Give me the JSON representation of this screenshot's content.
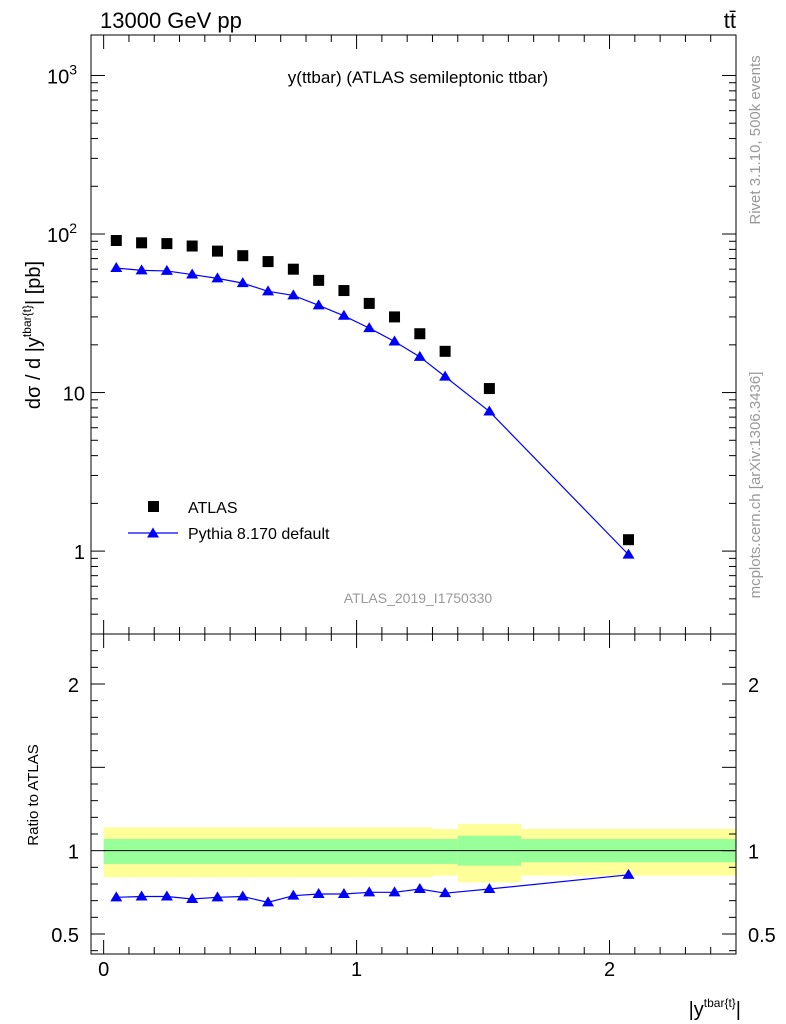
{
  "header": {
    "left": "13000 GeV pp",
    "right": "tt̄"
  },
  "side_labels": {
    "rivet": "Rivet 3.1.10,  500k events",
    "mcplots": "mcplots.cern.ch [arXiv:1306.3436]"
  },
  "chart_data": [
    {
      "type": "scatter",
      "title": "y(ttbar) (ATLAS semileptonic ttbar)",
      "ylabel": "dσ / d |y^{tbar{t}}| [pb]",
      "xlabel": "",
      "yscale": "log",
      "ylim": [
        0.3,
        1800
      ],
      "xlim": [
        -0.05,
        2.5
      ],
      "yticks": [
        {
          "value": 1,
          "label": "1"
        },
        {
          "value": 10,
          "label": "10"
        },
        {
          "value": 100,
          "label": "10^2"
        },
        {
          "value": 1000,
          "label": "10^3"
        }
      ],
      "legend_position": "bottom-left",
      "watermark": "ATLAS_2019_I1750330",
      "x": [
        0.05,
        0.15,
        0.25,
        0.35,
        0.45,
        0.55,
        0.65,
        0.75,
        0.85,
        0.95,
        1.05,
        1.15,
        1.25,
        1.35,
        1.525,
        2.075
      ],
      "series": [
        {
          "name": "ATLAS",
          "marker": "square",
          "color": "#000000",
          "values": [
            91,
            88,
            87,
            84,
            78,
            73,
            67,
            60,
            51,
            44,
            36.5,
            30,
            23.5,
            18.2,
            10.6,
            1.18
          ]
        },
        {
          "name": "Pythia 8.170 default",
          "marker": "triangle",
          "color": "#0000ff",
          "values": [
            61,
            59,
            58.5,
            55.5,
            52.5,
            49,
            43.5,
            41,
            35.5,
            30.5,
            25.5,
            21,
            16.8,
            12.6,
            7.6,
            0.95
          ]
        }
      ]
    },
    {
      "type": "line",
      "ylabel": "Ratio to ATLAS",
      "xlabel": "|y^{tbar{t}}|",
      "ylim": [
        0.38,
        2.3
      ],
      "xlim": [
        -0.05,
        2.5
      ],
      "yticks": [
        {
          "value": 0.5,
          "label": "0.5"
        },
        {
          "value": 1,
          "label": "1"
        },
        {
          "value": 2,
          "label": "2"
        }
      ],
      "xticks": [
        {
          "value": 0,
          "label": "0"
        },
        {
          "value": 1,
          "label": "1"
        },
        {
          "value": 2,
          "label": "2"
        }
      ],
      "bands": [
        {
          "x_from": 0.0,
          "x_to": 1.3,
          "yellow": [
            0.84,
            1.14
          ],
          "green": [
            0.92,
            1.07
          ]
        },
        {
          "x_from": 1.3,
          "x_to": 1.4,
          "yellow": [
            0.85,
            1.13
          ],
          "green": [
            0.92,
            1.07
          ]
        },
        {
          "x_from": 1.4,
          "x_to": 1.65,
          "yellow": [
            0.81,
            1.16
          ],
          "green": [
            0.91,
            1.09
          ]
        },
        {
          "x_from": 1.65,
          "x_to": 2.5,
          "yellow": [
            0.85,
            1.13
          ],
          "green": [
            0.93,
            1.07
          ]
        }
      ],
      "series": [
        {
          "name": "Pythia 8.170 default",
          "color": "#0000ff",
          "x": [
            0.05,
            0.15,
            0.25,
            0.35,
            0.45,
            0.55,
            0.65,
            0.75,
            0.85,
            0.95,
            1.05,
            1.15,
            1.25,
            1.35,
            1.525,
            2.075
          ],
          "values": [
            0.72,
            0.725,
            0.725,
            0.71,
            0.72,
            0.725,
            0.69,
            0.73,
            0.74,
            0.74,
            0.75,
            0.75,
            0.77,
            0.745,
            0.77,
            0.855
          ],
          "errors": [
            0.008,
            0.008,
            0.008,
            0.008,
            0.008,
            0.008,
            0.01,
            0.01,
            0.01,
            0.01,
            0.01,
            0.012,
            0.015,
            0.015,
            0.012,
            0.02
          ]
        }
      ]
    }
  ]
}
